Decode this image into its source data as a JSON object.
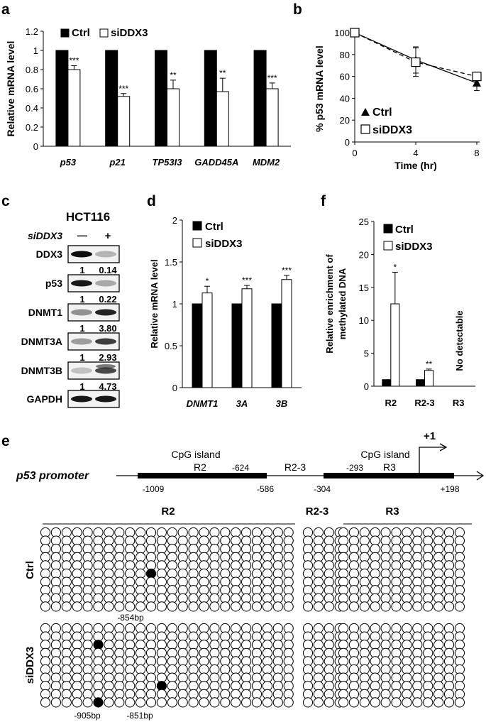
{
  "panels": {
    "a": {
      "letter": "a",
      "chart_data": {
        "type": "bar",
        "categories": [
          "p53",
          "p21",
          "TP53I3",
          "GADD45A",
          "MDM2"
        ],
        "series": [
          {
            "name": "Ctrl",
            "values": [
              1,
              1,
              1,
              1,
              1
            ],
            "errors": [
              0,
              0,
              0,
              0,
              0
            ]
          },
          {
            "name": "siDDX3",
            "values": [
              0.8,
              0.52,
              0.6,
              0.57,
              0.6
            ],
            "errors": [
              0.04,
              0.03,
              0.09,
              0.14,
              0.06
            ]
          }
        ],
        "significance": [
          "***",
          "***",
          "**",
          "**",
          "***"
        ],
        "ylabel": "Relative mRNA level",
        "ylim": [
          0,
          1.2
        ],
        "yticks": [
          "0",
          "0.2",
          "0.4",
          "0.6",
          "0.8",
          "1",
          "1.2"
        ],
        "legend_position": "top-left"
      }
    },
    "b": {
      "letter": "b",
      "chart_data": {
        "type": "line",
        "x": [
          0,
          4,
          8
        ],
        "series": [
          {
            "name": "Ctrl",
            "marker": "triangle",
            "values": [
              100,
              75,
              54
            ],
            "errors": [
              0,
              12,
              7
            ]
          },
          {
            "name": "siDDX3",
            "marker": "square",
            "values": [
              100,
              73,
              60
            ],
            "errors": [
              0,
              13,
              4
            ]
          }
        ],
        "xlabel": "Time (hr)",
        "ylabel": "% p53 mRNA level",
        "xticks": [
          "0",
          "4",
          "8"
        ],
        "ylim": [
          0,
          100
        ],
        "yticks": [
          "0",
          "20",
          "40",
          "60",
          "80",
          "100"
        ],
        "legend_position": "bottom-left"
      }
    },
    "c": {
      "letter": "c",
      "cell_line": "HCT116",
      "treatment_label": "siDDX3",
      "lane_labels": [
        "—",
        "+"
      ],
      "blots": [
        {
          "name": "DDX3",
          "values": [
            "1",
            "0.14"
          ]
        },
        {
          "name": "p53",
          "values": [
            "1",
            "0.22"
          ]
        },
        {
          "name": "DNMT1",
          "values": [
            "1",
            "3.80"
          ]
        },
        {
          "name": "DNMT3A",
          "values": [
            "1",
            "2.93"
          ]
        },
        {
          "name": "DNMT3B",
          "values": [
            "1",
            "4.73"
          ]
        },
        {
          "name": "GAPDH",
          "values": []
        }
      ]
    },
    "d": {
      "letter": "d",
      "chart_data": {
        "type": "bar",
        "categories": [
          "DNMT1",
          "3A",
          "3B"
        ],
        "series": [
          {
            "name": "Ctrl",
            "values": [
              1,
              1,
              1
            ],
            "errors": [
              0,
              0,
              0
            ]
          },
          {
            "name": "siDDX3",
            "values": [
              1.13,
              1.18,
              1.29
            ],
            "errors": [
              0.08,
              0.04,
              0.05
            ]
          }
        ],
        "significance": [
          "*",
          "***",
          "***"
        ],
        "ylabel": "Relative mRNA level",
        "ylim": [
          0,
          2
        ],
        "yticks": [
          "0",
          "0.5",
          "1",
          "1.5",
          "2"
        ],
        "legend_position": "top-left"
      }
    },
    "f": {
      "letter": "f",
      "chart_data": {
        "type": "bar",
        "categories": [
          "R2",
          "R2-3",
          "R3"
        ],
        "series": [
          {
            "name": "Ctrl",
            "values": [
              1,
              1,
              0
            ],
            "errors": [
              0,
              0,
              0
            ]
          },
          {
            "name": "siDDX3",
            "values": [
              12.5,
              2.4,
              0
            ],
            "errors": [
              4.8,
              0.2,
              0
            ]
          }
        ],
        "significance": [
          "*",
          "**",
          ""
        ],
        "annotation": "No detectable",
        "ylabel_line1": "Relative enrichment of",
        "ylabel_line2": "methylated DNA",
        "ylim": [
          0,
          25
        ],
        "yticks": [
          "0",
          "5",
          "10",
          "15",
          "20",
          "25"
        ],
        "legend_position": "top-left"
      }
    },
    "e": {
      "letter": "e",
      "promoter_label": "p53 promoter",
      "tss_label": "+1",
      "cpg_label_left": "CpG island",
      "cpg_label_right": "CpG island",
      "region_labels": [
        "R2",
        "R2-3",
        "R3"
      ],
      "positions": [
        "-1009",
        "-624",
        "-586",
        "-304",
        "-293",
        "+198"
      ],
      "group_labels": [
        "Ctrl",
        "siDDX3"
      ],
      "ctrl_annotations": [
        "-854bp"
      ],
      "siddx3_annotations": [
        "-905bp",
        "-851bp"
      ],
      "rows": 10,
      "columns": {
        "R2": 24,
        "R2-3": 4,
        "R3": 12
      },
      "methylated": {
        "ctrl": [
          {
            "row": 5,
            "col": 10
          }
        ],
        "siDDX3": [
          {
            "row": 2,
            "col": 5
          },
          {
            "row": 9,
            "col": 5
          },
          {
            "row": 7,
            "col": 11
          }
        ]
      }
    }
  }
}
